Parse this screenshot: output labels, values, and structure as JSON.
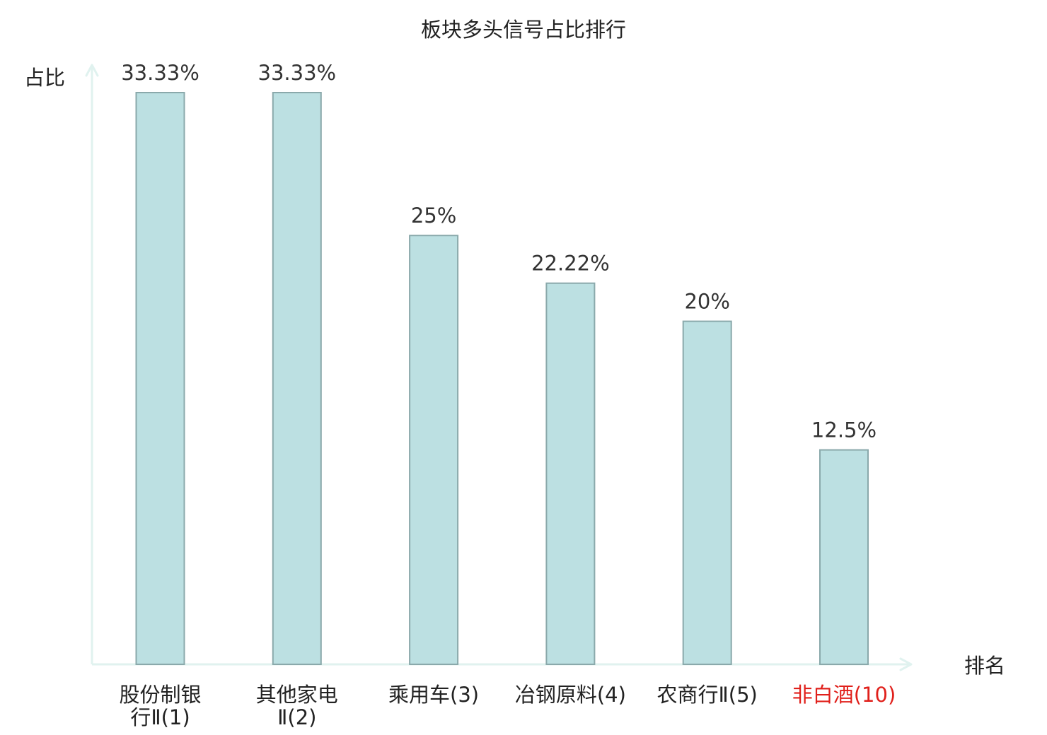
{
  "chart_data": {
    "type": "bar",
    "title": "板块多头信号占比排行",
    "ylabel": "占比",
    "xlabel": "排名",
    "ylim": [
      0,
      33.33
    ],
    "grid": false,
    "legend": "none",
    "colors": {
      "bar_fill": "#bce0e2",
      "bar_stroke": "#8aa9ab",
      "axis": "#e0f2ef",
      "text": "#222222",
      "value_text": "#333333",
      "highlight": "#e0201b"
    },
    "categories": [
      {
        "lines": [
          "股份制银",
          "行Ⅱ(1)"
        ],
        "highlight": false
      },
      {
        "lines": [
          "其他家电",
          "Ⅱ(2)"
        ],
        "highlight": false
      },
      {
        "lines": [
          "乘用车(3)"
        ],
        "highlight": false
      },
      {
        "lines": [
          "冶钢原料(4)"
        ],
        "highlight": false
      },
      {
        "lines": [
          "农商行Ⅱ(5)"
        ],
        "highlight": false
      },
      {
        "lines": [
          "非白酒(10)"
        ],
        "highlight": true
      }
    ],
    "values": [
      33.33,
      33.33,
      25,
      22.22,
      20,
      12.5
    ],
    "value_labels": [
      "33.33%",
      "33.33%",
      "25%",
      "22.22%",
      "20%",
      "12.5%"
    ]
  }
}
